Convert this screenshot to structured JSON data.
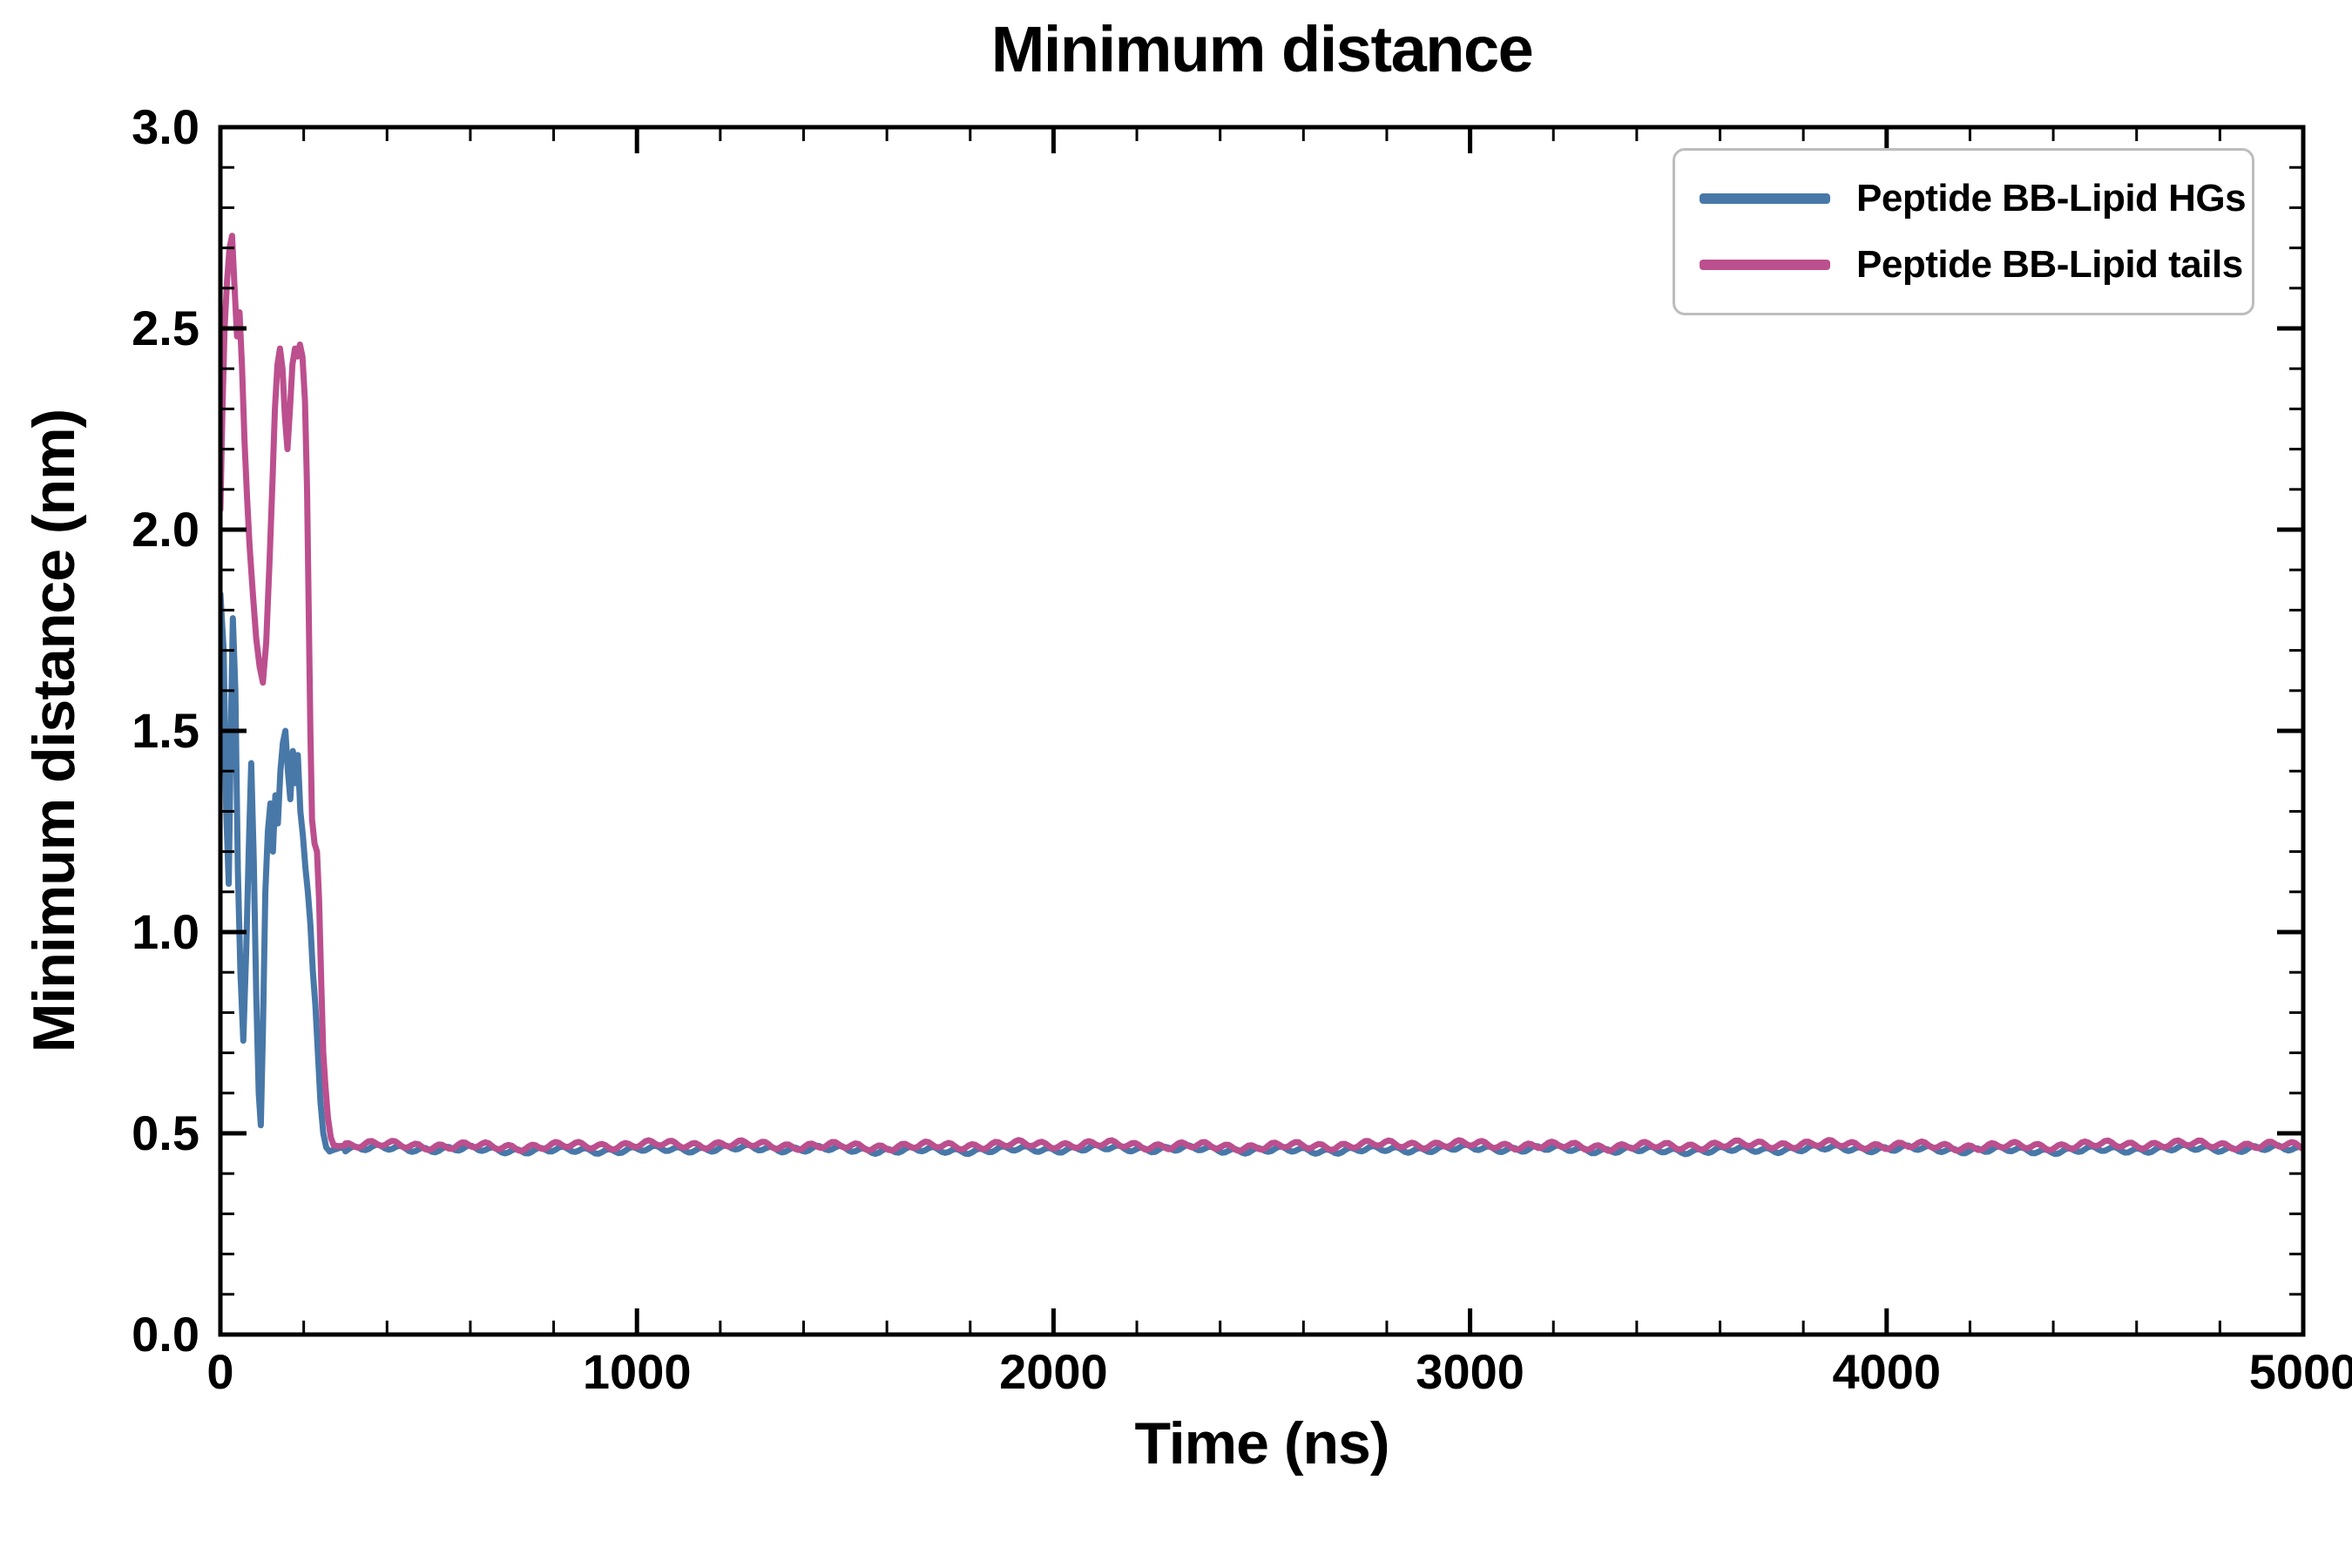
{
  "chart_data": {
    "type": "line",
    "title": "Minimum distance",
    "xlabel": "Time (ns)",
    "ylabel": "Minimum distance (nm)",
    "xlim": [
      0,
      5000
    ],
    "ylim": [
      0.0,
      3.0
    ],
    "xticks": [
      0,
      1000,
      2000,
      3000,
      4000,
      5000
    ],
    "xtick_labels": [
      "0",
      "1000",
      "2000",
      "3000",
      "4000",
      "5000"
    ],
    "yticks": [
      0.0,
      0.5,
      1.0,
      1.5,
      2.0,
      2.5,
      3.0
    ],
    "ytick_labels": [
      "0.0",
      "0.5",
      "1.0",
      "1.5",
      "2.0",
      "2.5",
      "3.0"
    ],
    "minor_x_step": 200,
    "minor_y_step": 0.1,
    "grid": false,
    "axis_color": "#000000",
    "legend_position": "upper right",
    "series": [
      {
        "name": "Peptide BB-Lipid HGs",
        "color": "#4878a8",
        "linewidth": 7,
        "transient": [
          [
            0,
            1.84
          ],
          [
            8,
            1.7
          ],
          [
            14,
            1.3
          ],
          [
            20,
            1.12
          ],
          [
            26,
            1.55
          ],
          [
            30,
            1.78
          ],
          [
            36,
            1.6
          ],
          [
            42,
            1.15
          ],
          [
            48,
            0.9
          ],
          [
            55,
            0.73
          ],
          [
            62,
            0.95
          ],
          [
            68,
            1.2
          ],
          [
            74,
            1.42
          ],
          [
            80,
            1.18
          ],
          [
            86,
            0.85
          ],
          [
            92,
            0.6
          ],
          [
            97,
            0.52
          ],
          [
            102,
            0.75
          ],
          [
            108,
            1.1
          ],
          [
            114,
            1.25
          ],
          [
            120,
            1.32
          ],
          [
            126,
            1.2
          ],
          [
            132,
            1.34
          ],
          [
            138,
            1.27
          ],
          [
            144,
            1.4
          ],
          [
            150,
            1.47
          ],
          [
            156,
            1.5
          ],
          [
            162,
            1.4
          ],
          [
            168,
            1.33
          ],
          [
            174,
            1.45
          ],
          [
            180,
            1.37
          ],
          [
            186,
            1.44
          ],
          [
            192,
            1.3
          ],
          [
            198,
            1.24
          ],
          [
            204,
            1.16
          ],
          [
            210,
            1.1
          ],
          [
            216,
            1.02
          ],
          [
            222,
            0.9
          ],
          [
            228,
            0.82
          ],
          [
            234,
            0.7
          ],
          [
            240,
            0.58
          ],
          [
            247,
            0.5
          ],
          [
            254,
            0.465
          ],
          [
            262,
            0.455
          ],
          [
            275,
            0.46
          ],
          [
            290,
            0.465
          ],
          [
            300,
            0.46
          ]
        ],
        "plateau": {
          "t_start": 300,
          "t_end": 5000,
          "step": 8,
          "mean": 0.46,
          "amplitude": 0.012,
          "seed": 3
        }
      },
      {
        "name": "Peptide BB-Lipid tails",
        "color": "#bc4f8e",
        "linewidth": 7,
        "transient": [
          [
            0,
            2.05
          ],
          [
            5,
            2.3
          ],
          [
            10,
            2.5
          ],
          [
            16,
            2.62
          ],
          [
            22,
            2.7
          ],
          [
            28,
            2.73
          ],
          [
            34,
            2.6
          ],
          [
            40,
            2.48
          ],
          [
            46,
            2.54
          ],
          [
            52,
            2.4
          ],
          [
            58,
            2.22
          ],
          [
            64,
            2.08
          ],
          [
            70,
            1.96
          ],
          [
            78,
            1.84
          ],
          [
            86,
            1.73
          ],
          [
            94,
            1.66
          ],
          [
            102,
            1.62
          ],
          [
            110,
            1.72
          ],
          [
            118,
            1.92
          ],
          [
            125,
            2.12
          ],
          [
            131,
            2.3
          ],
          [
            137,
            2.41
          ],
          [
            143,
            2.45
          ],
          [
            149,
            2.4
          ],
          [
            155,
            2.28
          ],
          [
            161,
            2.2
          ],
          [
            167,
            2.3
          ],
          [
            173,
            2.41
          ],
          [
            179,
            2.45
          ],
          [
            185,
            2.43
          ],
          [
            191,
            2.46
          ],
          [
            197,
            2.43
          ],
          [
            203,
            2.32
          ],
          [
            208,
            2.1
          ],
          [
            212,
            1.8
          ],
          [
            216,
            1.5
          ],
          [
            220,
            1.28
          ],
          [
            226,
            1.22
          ],
          [
            232,
            1.2
          ],
          [
            237,
            1.08
          ],
          [
            242,
            0.88
          ],
          [
            247,
            0.7
          ],
          [
            252,
            0.62
          ],
          [
            258,
            0.54
          ],
          [
            265,
            0.49
          ],
          [
            272,
            0.47
          ],
          [
            285,
            0.468
          ],
          [
            300,
            0.47
          ]
        ],
        "plateau": {
          "t_start": 300,
          "t_end": 5000,
          "step": 8,
          "mean": 0.47,
          "amplitude": 0.014,
          "seed": 11
        }
      }
    ]
  }
}
